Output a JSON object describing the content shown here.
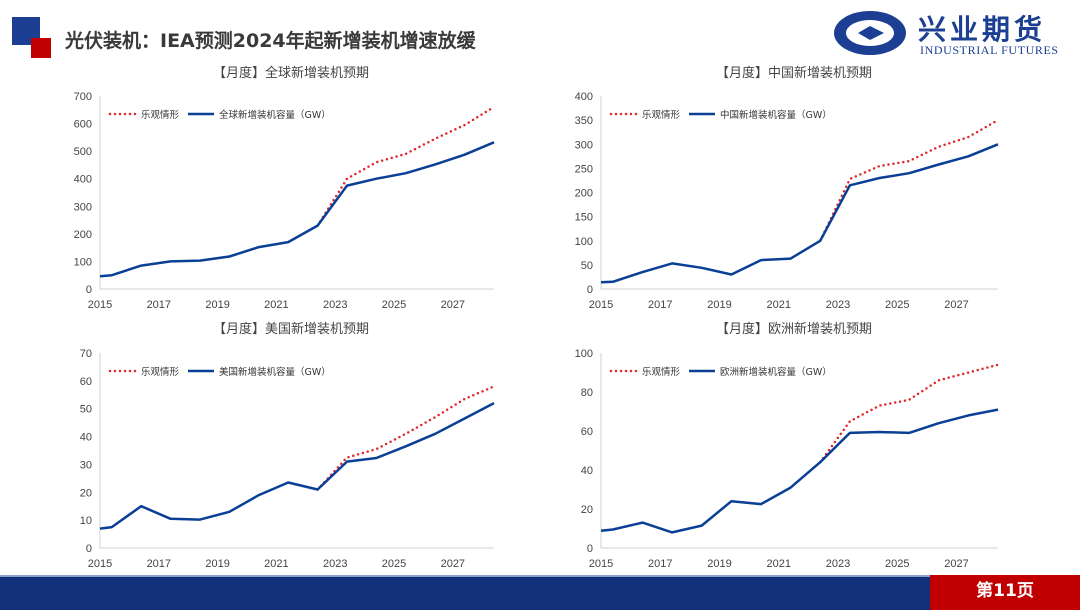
{
  "header": {
    "title": "光伏装机：IEA预测2024年起新增装机增速放缓",
    "logo_cn": "兴业期货",
    "logo_en": "INDUSTRIAL FUTURES"
  },
  "footer": {
    "page": "第11页"
  },
  "colors": {
    "actual": "#0a3f96",
    "optimistic": "#e0262b",
    "brand_blue": "#1c3f94",
    "brand_red": "#c00000"
  },
  "chart_data": [
    {
      "type": "line",
      "title": "【月度】全球新增装机预期",
      "ylim": [
        0,
        700
      ],
      "yticks": [
        0,
        100,
        200,
        300,
        400,
        500,
        600,
        700
      ],
      "xticks": [
        "2015",
        "2017",
        "2019",
        "2021",
        "2023",
        "2025",
        "2027"
      ],
      "x": [
        2015,
        2016,
        2017,
        2018,
        2019,
        2020,
        2021,
        2022,
        2023,
        2024,
        2025,
        2026,
        2027,
        2028
      ],
      "series": [
        {
          "name": "乐观情形",
          "style": "dotted",
          "x": [
            2022,
            2023,
            2024,
            2025,
            2026,
            2027,
            2028
          ],
          "values": [
            230,
            400,
            460,
            490,
            545,
            595,
            660
          ]
        },
        {
          "name": "全球新增装机容量（GW）",
          "style": "solid",
          "values": [
            50,
            85,
            100,
            103,
            118,
            152,
            170,
            230,
            375,
            400,
            420,
            452,
            487,
            532
          ]
        }
      ]
    },
    {
      "type": "line",
      "title": "【月度】中国新增装机预期",
      "ylim": [
        0,
        400
      ],
      "yticks": [
        0,
        50,
        100,
        150,
        200,
        250,
        300,
        350,
        400
      ],
      "xticks": [
        "2015",
        "2017",
        "2019",
        "2021",
        "2023",
        "2025",
        "2027"
      ],
      "x": [
        2015,
        2016,
        2017,
        2018,
        2019,
        2020,
        2021,
        2022,
        2023,
        2024,
        2025,
        2026,
        2027,
        2028
      ],
      "series": [
        {
          "name": "乐观情形",
          "style": "dotted",
          "x": [
            2022,
            2023,
            2024,
            2025,
            2026,
            2027,
            2028
          ],
          "values": [
            100,
            228,
            255,
            265,
            295,
            315,
            350
          ]
        },
        {
          "name": "中国新增装机容量（GW）",
          "style": "solid",
          "values": [
            15,
            35,
            53,
            44,
            30,
            60,
            63,
            100,
            215,
            230,
            240,
            258,
            275,
            300
          ]
        }
      ]
    },
    {
      "type": "line",
      "title": "【月度】美国新增装机预期",
      "ylim": [
        0,
        70
      ],
      "yticks": [
        0,
        10,
        20,
        30,
        40,
        50,
        60,
        70
      ],
      "xticks": [
        "2015",
        "2017",
        "2019",
        "2021",
        "2023",
        "2025",
        "2027"
      ],
      "x": [
        2015,
        2016,
        2017,
        2018,
        2019,
        2020,
        2021,
        2022,
        2023,
        2024,
        2025,
        2026,
        2027,
        2028
      ],
      "series": [
        {
          "name": "乐观情形",
          "style": "dotted",
          "x": [
            2022,
            2023,
            2024,
            2025,
            2026,
            2027,
            2028
          ],
          "values": [
            21,
            32.5,
            35.5,
            41,
            47,
            53.5,
            58
          ]
        },
        {
          "name": "美国新增装机容量（GW）",
          "style": "solid",
          "values": [
            7.5,
            15,
            10.5,
            10.2,
            13,
            19,
            23.5,
            21,
            31,
            32.3,
            36.5,
            41,
            46.5,
            52
          ]
        }
      ]
    },
    {
      "type": "line",
      "title": "【月度】欧洲新增装机预期",
      "ylim": [
        0,
        100
      ],
      "yticks": [
        0,
        20,
        40,
        60,
        80,
        100
      ],
      "xticks": [
        "2015",
        "2017",
        "2019",
        "2021",
        "2023",
        "2025",
        "2027"
      ],
      "x": [
        2015,
        2016,
        2017,
        2018,
        2019,
        2020,
        2021,
        2022,
        2023,
        2024,
        2025,
        2026,
        2027,
        2028
      ],
      "series": [
        {
          "name": "乐观情形",
          "style": "dotted",
          "x": [
            2022,
            2023,
            2024,
            2025,
            2026,
            2027,
            2028
          ],
          "values": [
            44,
            65,
            73,
            76,
            86,
            90,
            94
          ]
        },
        {
          "name": "欧洲新增装机容量（GW）",
          "style": "solid",
          "values": [
            9.5,
            13,
            8,
            11.5,
            24,
            22.5,
            31,
            44,
            59,
            59.5,
            59,
            64,
            68,
            71
          ]
        }
      ]
    }
  ]
}
